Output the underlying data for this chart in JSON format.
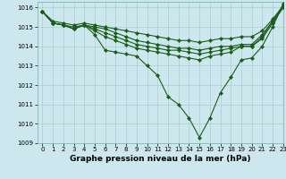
{
  "title": "Graphe pression niveau de la mer (hPa)",
  "background_color": "#cce8ee",
  "grid_color": "#aacccc",
  "line_color": "#1a5c1a",
  "lines": [
    [
      1015.8,
      1015.2,
      1015.1,
      1014.9,
      1015.1,
      1014.6,
      1013.8,
      1013.7,
      1013.6,
      1013.5,
      1013.0,
      1012.5,
      1011.4,
      1011.0,
      1010.3,
      1009.3,
      1010.3,
      1011.6,
      1012.4,
      1013.3,
      1013.4,
      1014.0,
      1015.0,
      1016.2
    ],
    [
      1015.8,
      1015.2,
      1015.1,
      1014.9,
      1015.1,
      1014.8,
      1014.5,
      1014.3,
      1014.1,
      1013.9,
      1013.8,
      1013.7,
      1013.6,
      1013.5,
      1013.4,
      1013.3,
      1013.5,
      1013.6,
      1013.7,
      1014.0,
      1014.0,
      1014.4,
      1015.2,
      1016.0
    ],
    [
      1015.8,
      1015.2,
      1015.1,
      1014.9,
      1015.1,
      1014.9,
      1014.7,
      1014.5,
      1014.3,
      1014.1,
      1014.0,
      1013.9,
      1013.8,
      1013.8,
      1013.7,
      1013.6,
      1013.7,
      1013.8,
      1013.9,
      1014.0,
      1014.0,
      1014.5,
      1015.3,
      1016.0
    ],
    [
      1015.8,
      1015.2,
      1015.1,
      1015.0,
      1015.1,
      1015.0,
      1014.9,
      1014.7,
      1014.5,
      1014.3,
      1014.2,
      1014.1,
      1014.0,
      1013.9,
      1013.9,
      1013.8,
      1013.9,
      1014.0,
      1014.0,
      1014.1,
      1014.1,
      1014.6,
      1015.3,
      1016.1
    ],
    [
      1015.8,
      1015.3,
      1015.2,
      1015.1,
      1015.2,
      1015.1,
      1015.0,
      1014.9,
      1014.8,
      1014.7,
      1014.6,
      1014.5,
      1014.4,
      1014.3,
      1014.3,
      1014.2,
      1014.3,
      1014.4,
      1014.4,
      1014.5,
      1014.5,
      1014.8,
      1015.4,
      1016.1
    ]
  ],
  "xlim": [
    -0.5,
    23
  ],
  "ylim": [
    1009.0,
    1016.3
  ],
  "xticks": [
    0,
    1,
    2,
    3,
    4,
    5,
    6,
    7,
    8,
    9,
    10,
    11,
    12,
    13,
    14,
    15,
    16,
    17,
    18,
    19,
    20,
    21,
    22,
    23
  ],
  "yticks": [
    1009,
    1010,
    1011,
    1012,
    1013,
    1014,
    1015,
    1016
  ],
  "tick_fontsize": 5.0,
  "title_fontsize": 6.5,
  "title_fontweight": "bold",
  "linewidth": 0.8,
  "markersize": 2.2
}
